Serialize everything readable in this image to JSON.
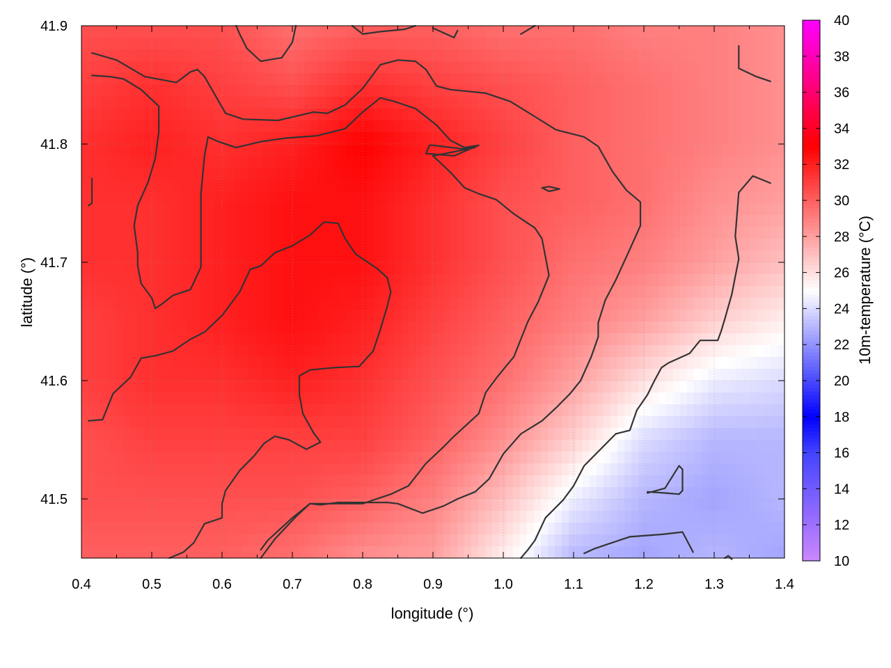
{
  "chart_data": {
    "type": "heatmap",
    "xlabel": "longitude (°)",
    "ylabel": "latitude (°)",
    "colorbar_label": "10m-temperature (°C)",
    "xlim": [
      0.4,
      1.4
    ],
    "ylim": [
      41.45,
      41.9
    ],
    "x_ticks": [
      "0.4",
      "0.5",
      "0.6",
      "0.7",
      "0.8",
      "0.9",
      "1.0",
      "1.1",
      "1.2",
      "1.3",
      "1.4"
    ],
    "y_ticks": [
      "41.5",
      "41.6",
      "41.7",
      "41.8",
      "41.9"
    ],
    "colorbar_range": [
      10,
      40
    ],
    "colorbar_ticks": [
      "10",
      "12",
      "14",
      "16",
      "18",
      "20",
      "22",
      "24",
      "26",
      "28",
      "30",
      "32",
      "34",
      "36",
      "38",
      "40"
    ],
    "grid": true,
    "colormap": [
      {
        "value": 10,
        "color": "#cc88ff"
      },
      {
        "value": 16,
        "color": "#4444ff"
      },
      {
        "value": 18,
        "color": "#0000ff"
      },
      {
        "value": 25,
        "color": "#ffffff"
      },
      {
        "value": 33,
        "color": "#ff0000"
      },
      {
        "value": 40,
        "color": "#ff00ff"
      }
    ],
    "field_grid": {
      "lon": [
        0.4,
        0.5,
        0.6,
        0.7,
        0.8,
        0.9,
        1.0,
        1.1,
        1.2,
        1.3,
        1.4
      ],
      "lat": [
        41.9,
        41.85,
        41.8,
        41.75,
        41.7,
        41.65,
        41.6,
        41.55,
        41.5,
        41.45
      ],
      "values": [
        [
          30.5,
          30.5,
          30.5,
          29.5,
          30.0,
          30.0,
          29.5,
          29.5,
          29.0,
          29.0,
          28.5
        ],
        [
          31.0,
          31.5,
          31.0,
          30.5,
          31.5,
          31.0,
          30.5,
          30.0,
          29.5,
          29.0,
          28.5
        ],
        [
          31.5,
          32.0,
          31.5,
          32.0,
          33.0,
          32.0,
          31.0,
          30.0,
          29.5,
          29.0,
          28.5
        ],
        [
          31.5,
          31.5,
          32.0,
          32.5,
          32.5,
          31.5,
          30.5,
          30.0,
          29.5,
          28.5,
          28.0
        ],
        [
          31.5,
          31.5,
          32.0,
          32.5,
          32.5,
          31.5,
          30.5,
          29.5,
          29.0,
          28.0,
          27.0
        ],
        [
          31.0,
          31.5,
          32.0,
          32.5,
          32.0,
          31.0,
          30.0,
          29.0,
          28.0,
          26.5,
          25.5
        ],
        [
          31.0,
          31.5,
          31.5,
          32.0,
          31.5,
          30.5,
          29.5,
          28.0,
          26.0,
          24.5,
          24.0
        ],
        [
          30.5,
          31.0,
          31.0,
          31.0,
          31.0,
          30.0,
          28.5,
          26.5,
          24.0,
          23.0,
          23.0
        ],
        [
          30.5,
          30.5,
          30.5,
          30.5,
          30.0,
          29.0,
          27.0,
          24.5,
          23.0,
          22.5,
          23.0
        ],
        [
          30.0,
          30.0,
          30.0,
          29.5,
          28.5,
          28.0,
          25.5,
          23.0,
          22.5,
          23.0,
          22.5
        ]
      ]
    },
    "contours": [
      [
        [
          0.415,
          41.877
        ],
        [
          0.45,
          41.871
        ],
        [
          0.49,
          41.857
        ],
        [
          0.535,
          41.852
        ],
        [
          0.555,
          41.861
        ],
        [
          0.565,
          41.863
        ],
        [
          0.575,
          41.857
        ],
        [
          0.605,
          41.826
        ],
        [
          0.63,
          41.821
        ],
        [
          0.68,
          41.82
        ],
        [
          0.73,
          41.827
        ],
        [
          0.75,
          41.826
        ],
        [
          0.775,
          41.833
        ],
        [
          0.8,
          41.847
        ],
        [
          0.825,
          41.867
        ],
        [
          0.85,
          41.871
        ],
        [
          0.875,
          41.87
        ],
        [
          0.89,
          41.863
        ],
        [
          0.905,
          41.849
        ],
        [
          0.925,
          41.846
        ],
        [
          0.975,
          41.843
        ],
        [
          1.01,
          41.836
        ],
        [
          1.04,
          41.825
        ],
        [
          1.075,
          41.812
        ],
        [
          1.115,
          41.806
        ],
        [
          1.135,
          41.798
        ],
        [
          1.155,
          41.777
        ],
        [
          1.175,
          41.761
        ],
        [
          1.195,
          41.751
        ],
        [
          1.195,
          41.731
        ],
        [
          1.18,
          41.711
        ],
        [
          1.16,
          41.685
        ],
        [
          1.145,
          41.668
        ],
        [
          1.135,
          41.649
        ],
        [
          1.135,
          41.637
        ],
        [
          1.125,
          41.62
        ],
        [
          1.11,
          41.6
        ],
        [
          1.095,
          41.589
        ],
        [
          1.075,
          41.577
        ],
        [
          1.055,
          41.566
        ],
        [
          1.025,
          41.555
        ],
        [
          1.0,
          41.538
        ],
        [
          0.98,
          41.517
        ],
        [
          0.96,
          41.506
        ],
        [
          0.935,
          41.5
        ],
        [
          0.915,
          41.494
        ],
        [
          0.885,
          41.488
        ],
        [
          0.85,
          41.496
        ],
        [
          0.835,
          41.497
        ],
        [
          0.8,
          41.497
        ],
        [
          0.765,
          41.497
        ],
        [
          0.74,
          41.495
        ],
        [
          0.725,
          41.496
        ],
        [
          0.705,
          41.485
        ],
        [
          0.675,
          41.466
        ],
        [
          0.655,
          41.45
        ]
      ],
      [
        [
          0.415,
          41.858
        ],
        [
          0.44,
          41.857
        ],
        [
          0.46,
          41.855
        ],
        [
          0.485,
          41.846
        ],
        [
          0.51,
          41.832
        ],
        [
          0.51,
          41.81
        ],
        [
          0.505,
          41.788
        ],
        [
          0.495,
          41.768
        ],
        [
          0.48,
          41.748
        ],
        [
          0.475,
          41.731
        ],
        [
          0.48,
          41.708
        ],
        [
          0.48,
          41.697
        ],
        [
          0.485,
          41.682
        ],
        [
          0.5,
          41.67
        ],
        [
          0.505,
          41.661
        ],
        [
          0.515,
          41.665
        ],
        [
          0.53,
          41.672
        ],
        [
          0.555,
          41.677
        ],
        [
          0.57,
          41.696
        ],
        [
          0.57,
          41.714
        ],
        [
          0.57,
          41.758
        ],
        [
          0.575,
          41.79
        ],
        [
          0.58,
          41.806
        ],
        [
          0.595,
          41.802
        ],
        [
          0.62,
          41.797
        ],
        [
          0.655,
          41.802
        ],
        [
          0.69,
          41.805
        ],
        [
          0.735,
          41.807
        ],
        [
          0.775,
          41.813
        ],
        [
          0.8,
          41.827
        ],
        [
          0.825,
          41.839
        ],
        [
          0.845,
          41.836
        ],
        [
          0.875,
          41.83
        ],
        [
          0.905,
          41.816
        ],
        [
          0.925,
          41.803
        ],
        [
          0.945,
          41.797
        ],
        [
          0.965,
          41.799
        ],
        [
          0.93,
          41.79
        ],
        [
          0.89,
          41.792
        ],
        [
          0.895,
          41.799
        ],
        [
          0.9,
          41.799
        ],
        [
          0.94,
          41.796
        ],
        [
          0.96,
          41.797
        ],
        [
          0.9,
          41.79
        ],
        [
          0.925,
          41.776
        ],
        [
          0.945,
          41.763
        ],
        [
          0.965,
          41.758
        ],
        [
          0.99,
          41.753
        ],
        [
          1.015,
          41.741
        ],
        [
          1.045,
          41.729
        ],
        [
          1.055,
          41.72
        ],
        [
          1.065,
          41.689
        ],
        [
          1.05,
          41.667
        ],
        [
          1.035,
          41.65
        ],
        [
          1.015,
          41.62
        ],
        [
          1.005,
          41.613
        ],
        [
          0.99,
          41.602
        ],
        [
          0.975,
          41.59
        ],
        [
          0.965,
          41.572
        ],
        [
          0.93,
          41.553
        ],
        [
          0.915,
          41.544
        ],
        [
          0.89,
          41.53
        ],
        [
          0.865,
          41.511
        ],
        [
          0.84,
          41.504
        ],
        [
          0.8,
          41.496
        ],
        [
          0.765,
          41.496
        ],
        [
          0.725,
          41.496
        ],
        [
          0.7,
          41.484
        ],
        [
          0.665,
          41.465
        ],
        [
          0.655,
          41.457
        ]
      ],
      [
        [
          0.41,
          41.566
        ],
        [
          0.43,
          41.567
        ],
        [
          0.445,
          41.589
        ],
        [
          0.47,
          41.603
        ],
        [
          0.485,
          41.619
        ],
        [
          0.505,
          41.621
        ],
        [
          0.53,
          41.625
        ],
        [
          0.555,
          41.635
        ],
        [
          0.575,
          41.641
        ],
        [
          0.6,
          41.655
        ],
        [
          0.625,
          41.675
        ],
        [
          0.64,
          41.694
        ],
        [
          0.655,
          41.697
        ],
        [
          0.675,
          41.708
        ],
        [
          0.7,
          41.714
        ],
        [
          0.725,
          41.723
        ],
        [
          0.745,
          41.734
        ],
        [
          0.765,
          41.733
        ],
        [
          0.775,
          41.72
        ],
        [
          0.79,
          41.707
        ],
        [
          0.82,
          41.695
        ],
        [
          0.835,
          41.687
        ],
        [
          0.84,
          41.675
        ],
        [
          0.835,
          41.663
        ],
        [
          0.825,
          41.643
        ],
        [
          0.815,
          41.625
        ],
        [
          0.795,
          41.612
        ],
        [
          0.76,
          41.611
        ],
        [
          0.725,
          41.609
        ],
        [
          0.71,
          41.604
        ],
        [
          0.71,
          41.588
        ],
        [
          0.715,
          41.572
        ],
        [
          0.73,
          41.556
        ],
        [
          0.74,
          41.548
        ],
        [
          0.72,
          41.542
        ],
        [
          0.695,
          41.55
        ],
        [
          0.675,
          41.553
        ],
        [
          0.66,
          41.547
        ],
        [
          0.645,
          41.536
        ],
        [
          0.625,
          41.524
        ],
        [
          0.605,
          41.507
        ],
        [
          0.6,
          41.496
        ],
        [
          0.6,
          41.484
        ],
        [
          0.575,
          41.479
        ],
        [
          0.56,
          41.463
        ],
        [
          0.545,
          41.455
        ],
        [
          0.525,
          41.45
        ]
      ],
      [
        [
          0.62,
          41.9
        ],
        [
          0.625,
          41.893
        ],
        [
          0.635,
          41.881
        ],
        [
          0.655,
          41.87
        ],
        [
          0.685,
          41.873
        ],
        [
          0.7,
          41.886
        ],
        [
          0.705,
          41.9
        ]
      ],
      [
        [
          0.785,
          41.9
        ],
        [
          0.8,
          41.893
        ],
        [
          0.825,
          41.895
        ],
        [
          0.86,
          41.897
        ],
        [
          0.875,
          41.9
        ]
      ],
      [
        [
          0.9,
          41.898
        ],
        [
          0.93,
          41.89
        ],
        [
          0.935,
          41.896
        ]
      ],
      [
        [
          1.025,
          41.893
        ],
        [
          1.045,
          41.9
        ]
      ],
      [
        [
          1.335,
          41.883
        ],
        [
          1.335,
          41.864
        ],
        [
          1.36,
          41.857
        ],
        [
          1.38,
          41.853
        ]
      ],
      [
        [
          0.415,
          41.771
        ],
        [
          0.415,
          41.75
        ],
        [
          0.41,
          41.748
        ]
      ],
      [
        [
          1.055,
          41.763
        ],
        [
          1.065,
          41.764
        ],
        [
          1.08,
          41.762
        ],
        [
          1.065,
          41.76
        ],
        [
          1.055,
          41.763
        ]
      ],
      [
        [
          1.38,
          41.767
        ],
        [
          1.355,
          41.773
        ],
        [
          1.335,
          41.759
        ],
        [
          1.33,
          41.722
        ],
        [
          1.335,
          41.703
        ],
        [
          1.325,
          41.673
        ],
        [
          1.315,
          41.652
        ],
        [
          1.31,
          41.642
        ],
        [
          1.305,
          41.634
        ],
        [
          1.28,
          41.634
        ],
        [
          1.265,
          41.623
        ],
        [
          1.235,
          41.615
        ],
        [
          1.225,
          41.611
        ],
        [
          1.215,
          41.6
        ],
        [
          1.205,
          41.588
        ],
        [
          1.19,
          41.575
        ],
        [
          1.18,
          41.558
        ],
        [
          1.16,
          41.555
        ],
        [
          1.135,
          41.54
        ],
        [
          1.115,
          41.528
        ],
        [
          1.1,
          41.511
        ],
        [
          1.085,
          41.499
        ],
        [
          1.06,
          41.484
        ],
        [
          1.045,
          41.465
        ],
        [
          1.035,
          41.457
        ],
        [
          1.025,
          41.45
        ]
      ],
      [
        [
          1.205,
          41.505
        ],
        [
          1.23,
          41.509
        ],
        [
          1.25,
          41.528
        ],
        [
          1.255,
          41.525
        ],
        [
          1.255,
          41.507
        ],
        [
          1.25,
          41.504
        ],
        [
          1.23,
          41.505
        ],
        [
          1.205,
          41.506
        ]
      ],
      [
        [
          1.115,
          41.454
        ],
        [
          1.13,
          41.458
        ],
        [
          1.15,
          41.462
        ],
        [
          1.18,
          41.468
        ],
        [
          1.225,
          41.47
        ],
        [
          1.255,
          41.472
        ],
        [
          1.27,
          41.455
        ]
      ],
      [
        [
          1.315,
          41.45
        ],
        [
          1.32,
          41.452
        ],
        [
          1.325,
          41.449
        ]
      ]
    ]
  }
}
